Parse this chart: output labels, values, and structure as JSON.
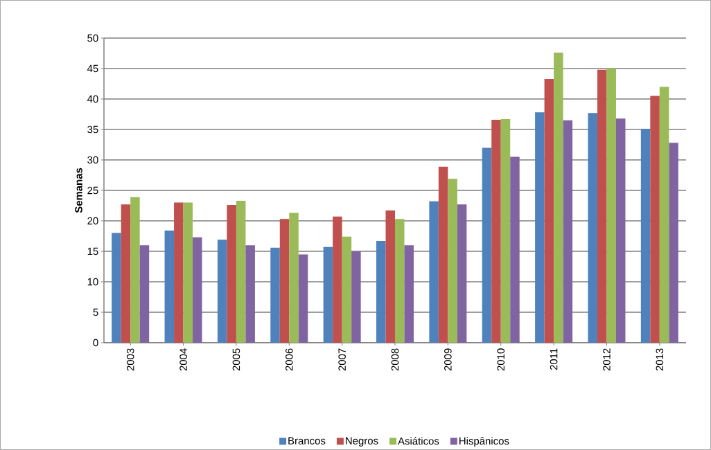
{
  "chart_data": {
    "type": "bar",
    "ylabel": "Semanas",
    "categories": [
      "2003",
      "2004",
      "2005",
      "2006",
      "2007",
      "2008",
      "2009",
      "2010",
      "2011",
      "2012",
      "2013"
    ],
    "series": [
      {
        "name": "Brancos",
        "color": "#4f81bd",
        "values": [
          18,
          18.4,
          16.9,
          15.6,
          15.7,
          16.7,
          23.2,
          32,
          37.8,
          37.7,
          35.1
        ]
      },
      {
        "name": "Negros",
        "color": "#c0504d",
        "values": [
          22.7,
          23,
          22.6,
          20.3,
          20.7,
          21.7,
          28.9,
          36.6,
          43.3,
          44.8,
          40.5
        ]
      },
      {
        "name": "Asiáticos",
        "color": "#9bbb59",
        "values": [
          23.9,
          23,
          23.3,
          21.3,
          17.4,
          20.3,
          26.9,
          36.7,
          47.6,
          45,
          42
        ]
      },
      {
        "name": "Hispânicos",
        "color": "#8064a2",
        "values": [
          16,
          17.3,
          16,
          14.5,
          15,
          16,
          22.7,
          30.5,
          36.5,
          36.8,
          32.8
        ]
      }
    ],
    "ylim": [
      0,
      50
    ],
    "yticks": [
      0,
      5,
      10,
      15,
      20,
      25,
      30,
      35,
      40,
      45,
      50
    ],
    "grid": "y",
    "legend": "bottom"
  }
}
